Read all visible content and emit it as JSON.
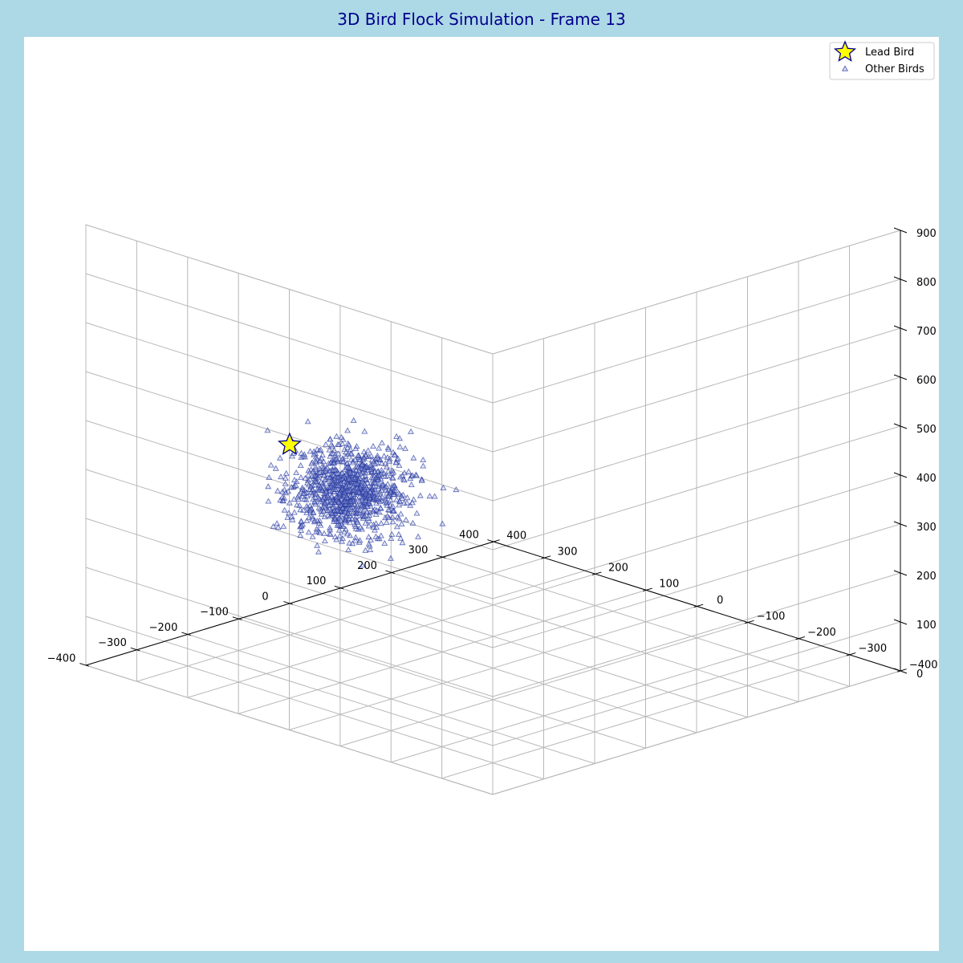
{
  "chart_data": {
    "type": "scatter",
    "title": "3D Bird Flock Simulation - Frame 13",
    "xlim": [
      -400,
      400
    ],
    "ylim": [
      -400,
      400
    ],
    "zlim": [
      0,
      900
    ],
    "x_ticks": [
      -400,
      -300,
      -200,
      -100,
      0,
      100,
      200,
      300,
      400
    ],
    "y_ticks": [
      -400,
      -300,
      -200,
      -100,
      0,
      100,
      200,
      300,
      400
    ],
    "z_ticks": [
      0,
      100,
      200,
      300,
      400,
      500,
      600,
      700,
      800,
      900
    ],
    "x_tick_labels": [
      "−400",
      "−300",
      "−200",
      "−100",
      "0",
      "100",
      "200",
      "300",
      "400"
    ],
    "y_tick_labels": [
      "−400",
      "−300",
      "−200",
      "−100",
      "0",
      "100",
      "200",
      "300",
      "400"
    ],
    "z_tick_labels": [
      "0",
      "100",
      "200",
      "300",
      "400",
      "500",
      "600",
      "700",
      "800",
      "900"
    ],
    "grid": true,
    "legend_position": "top-right",
    "series": [
      {
        "name": "Lead Bird",
        "marker": "star",
        "color": "#ffff00",
        "edge_color": "#00008b",
        "points": [
          {
            "x": 360,
            "y": -40,
            "z": 350
          }
        ]
      },
      {
        "name": "Other Birds",
        "marker": "triangle",
        "color": "#9fb0e0",
        "edge_color": "#2838a0",
        "count": 1000,
        "cluster": {
          "center": {
            "x": 0,
            "y": -280,
            "z": 450
          },
          "spread": {
            "x": 70,
            "y": 70,
            "z": 70
          }
        }
      }
    ]
  }
}
